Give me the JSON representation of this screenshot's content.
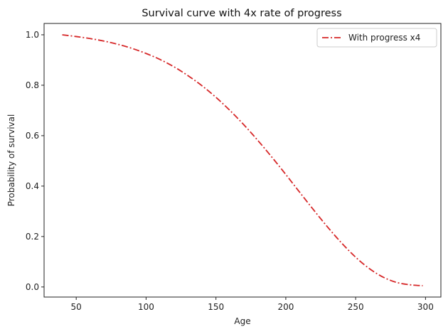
{
  "chart_data": {
    "type": "line",
    "title": "Survival curve with 4x rate of progress",
    "xlabel": "Age",
    "ylabel": "Probability of survival",
    "xlim": [
      27,
      311
    ],
    "ylim": [
      -0.04,
      1.045
    ],
    "xticks": [
      50,
      100,
      150,
      200,
      250,
      300
    ],
    "yticks": [
      0.0,
      0.2,
      0.4,
      0.6,
      0.8,
      1.0
    ],
    "xtick_labels": [
      "50",
      "100",
      "150",
      "200",
      "250",
      "300"
    ],
    "ytick_labels": [
      "0.0",
      "0.2",
      "0.4",
      "0.6",
      "0.8",
      "1.0"
    ],
    "legend_position": "top-right",
    "grid": false,
    "series": [
      {
        "name": "With progress x4",
        "color": "#d62728",
        "linestyle": "dashdot",
        "x": [
          40,
          50,
          60,
          70,
          80,
          90,
          100,
          110,
          120,
          130,
          140,
          150,
          160,
          170,
          180,
          190,
          200,
          210,
          220,
          230,
          240,
          250,
          260,
          270,
          280,
          290,
          298
        ],
        "y": [
          1.0,
          0.993,
          0.985,
          0.975,
          0.962,
          0.946,
          0.926,
          0.902,
          0.873,
          0.838,
          0.798,
          0.752,
          0.7,
          0.643,
          0.581,
          0.515,
          0.446,
          0.375,
          0.305,
          0.237,
          0.174,
          0.118,
          0.072,
          0.038,
          0.017,
          0.008,
          0.005
        ]
      }
    ]
  }
}
